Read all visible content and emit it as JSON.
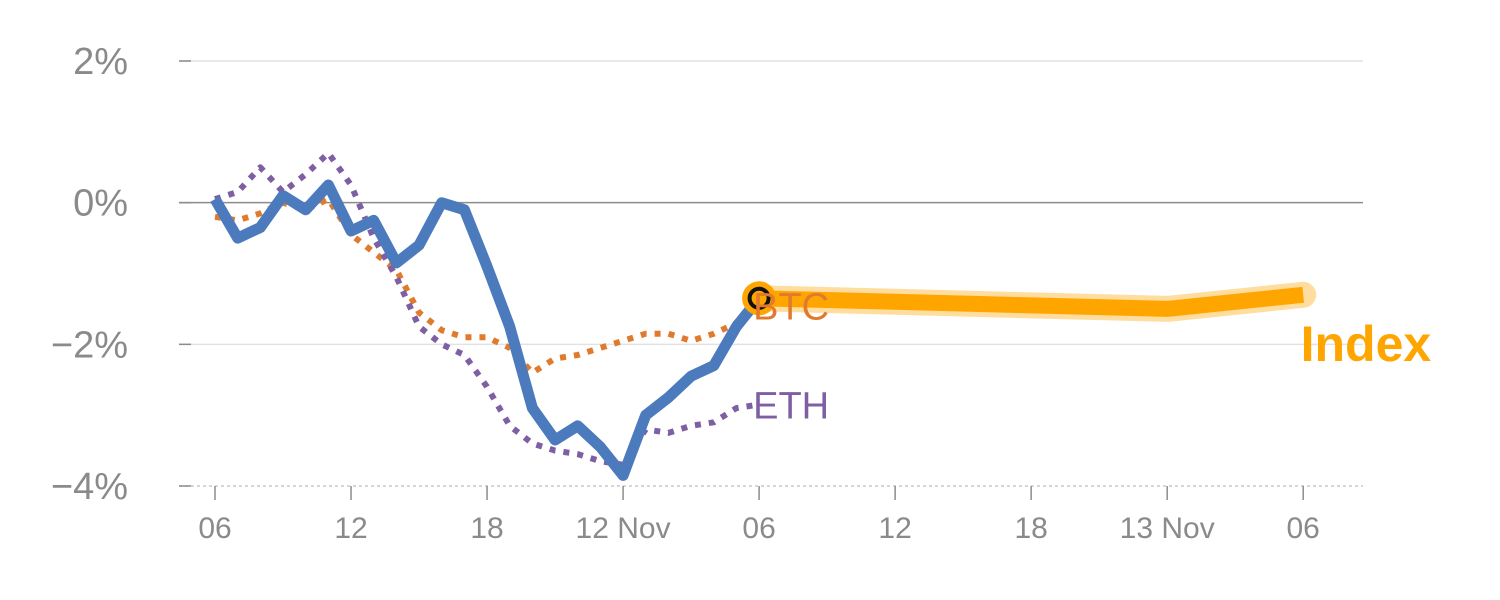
{
  "chart_data": {
    "type": "line",
    "title": "",
    "xlabel": "",
    "ylabel": "",
    "y_unit": "%",
    "ylim": [
      -4,
      2
    ],
    "xlim": [
      0,
      48.3
    ],
    "grid": "horizontal",
    "y_ticks": [
      {
        "value": 2,
        "label": "2%"
      },
      {
        "value": 0,
        "label": "0%"
      },
      {
        "value": -2,
        "label": "−2%"
      },
      {
        "value": -4,
        "label": "−4%"
      }
    ],
    "x_ticks": [
      {
        "value": 0,
        "label": "06"
      },
      {
        "value": 6,
        "label": "12"
      },
      {
        "value": 12,
        "label": "18"
      },
      {
        "value": 18,
        "label": "12 Nov"
      },
      {
        "value": 24,
        "label": "06"
      },
      {
        "value": 30,
        "label": "12"
      },
      {
        "value": 36,
        "label": "18"
      },
      {
        "value": 42,
        "label": "13 Nov"
      },
      {
        "value": 48,
        "label": "06"
      }
    ],
    "series": [
      {
        "name": "Index",
        "role": "historical",
        "style": "solid",
        "color": "#4c7bbd",
        "x": [
          0,
          1,
          2,
          3,
          4,
          5,
          6,
          7,
          8,
          9,
          10,
          11,
          12,
          13,
          14,
          15,
          16,
          17,
          18,
          19,
          20,
          21,
          22,
          23,
          24
        ],
        "y": [
          0.05,
          -0.5,
          -0.35,
          0.1,
          -0.1,
          0.25,
          -0.4,
          -0.25,
          -0.85,
          -0.6,
          0.0,
          -0.1,
          -0.9,
          -1.75,
          -2.9,
          -3.35,
          -3.15,
          -3.45,
          -3.85,
          -3.0,
          -2.75,
          -2.45,
          -2.3,
          -1.75,
          -1.35
        ]
      },
      {
        "name": "Index",
        "role": "projection",
        "style": "thick-highlight",
        "color": "#ffa500",
        "x": [
          24,
          30,
          36,
          42,
          48
        ],
        "y": [
          -1.35,
          -1.4,
          -1.45,
          -1.5,
          -1.3
        ]
      },
      {
        "name": "BTC",
        "style": "dotted",
        "color": "#e07b2e",
        "x": [
          0,
          1,
          2,
          3,
          4,
          5,
          6,
          7,
          8,
          9,
          10,
          11,
          12,
          13,
          14,
          15,
          16,
          17,
          18,
          19,
          20,
          21,
          22,
          23,
          24
        ],
        "y": [
          -0.2,
          -0.25,
          -0.15,
          0.0,
          -0.1,
          0.05,
          -0.45,
          -0.7,
          -0.95,
          -1.55,
          -1.8,
          -1.9,
          -1.9,
          -2.05,
          -2.4,
          -2.2,
          -2.15,
          -2.05,
          -1.95,
          -1.85,
          -1.85,
          -1.95,
          -1.85,
          -1.7,
          -1.45
        ]
      },
      {
        "name": "ETH",
        "style": "dotted",
        "color": "#7f5fa3",
        "x": [
          0,
          1,
          2,
          3,
          4,
          5,
          6,
          7,
          8,
          9,
          10,
          11,
          12,
          13,
          14,
          15,
          16,
          17,
          18,
          19,
          20,
          21,
          22,
          23,
          24
        ],
        "y": [
          0.05,
          0.15,
          0.5,
          0.15,
          0.4,
          0.7,
          0.25,
          -0.5,
          -1.05,
          -1.75,
          -2.0,
          -2.15,
          -2.6,
          -3.15,
          -3.4,
          -3.5,
          -3.55,
          -3.65,
          -3.7,
          -3.2,
          -3.25,
          -3.15,
          -3.1,
          -2.9,
          -2.85
        ]
      }
    ],
    "marker": {
      "x": 24,
      "y": -1.35,
      "fill": "#ffa500",
      "stroke": "#111111"
    }
  }
}
